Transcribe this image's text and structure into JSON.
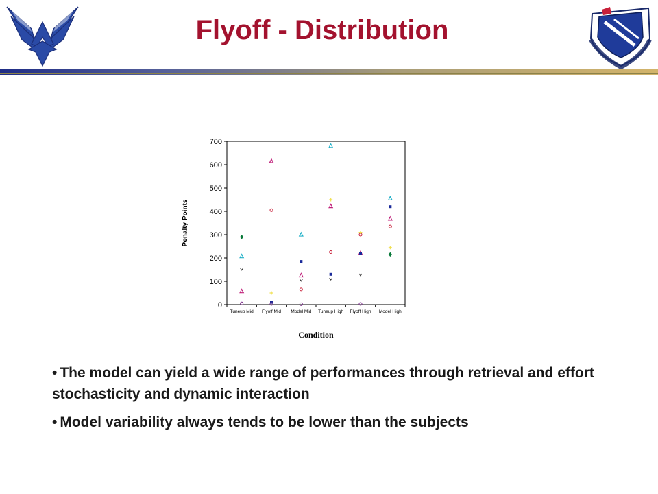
{
  "slide": {
    "title": "Flyoff - Distribution",
    "bullets": [
      "The model can yield a wide range of performances through retrieval and effort stochasticity and dynamic interaction",
      "Model variability always tends to be lower than the subjects"
    ],
    "left_logo_icon": "air-force-wings-icon",
    "right_logo_icon": "afosr-shield-icon",
    "colors": {
      "title": "#a3122e",
      "bar_left": "#1f2d86",
      "bar_right": "#d3b46a"
    }
  },
  "chart_data": {
    "type": "scatter",
    "title": "",
    "xlabel": "Condition",
    "ylabel": "Penalty Points",
    "categories": [
      "Tuneup Mid",
      "Flyoff Mid",
      "Model Mid",
      "Tuneup High",
      "Flyoff High",
      "Model High"
    ],
    "ylim": [
      0,
      700
    ],
    "yticks": [
      0,
      100,
      200,
      300,
      400,
      500,
      600,
      700
    ],
    "grid": false,
    "legend": "none",
    "series": [
      {
        "color": "#0a7a3a",
        "marker": "diamond",
        "points": [
          [
            0,
            290
          ],
          [
            5,
            215
          ]
        ]
      },
      {
        "color": "#20b0c8",
        "marker": "triangle",
        "points": [
          [
            0,
            207
          ],
          [
            2,
            300
          ],
          [
            3,
            680
          ],
          [
            5,
            455
          ]
        ]
      },
      {
        "color": "#c0207a",
        "marker": "triangle",
        "points": [
          [
            0,
            57
          ],
          [
            1,
            615
          ],
          [
            2,
            125
          ],
          [
            3,
            422
          ],
          [
            4,
            220
          ],
          [
            5,
            368
          ]
        ]
      },
      {
        "color": "#c8203a",
        "marker": "circle",
        "points": [
          [
            1,
            405
          ],
          [
            2,
            65
          ],
          [
            3,
            225
          ],
          [
            4,
            300
          ],
          [
            5,
            335
          ]
        ]
      },
      {
        "color": "#1a2a9a",
        "marker": "square",
        "points": [
          [
            1,
            10
          ],
          [
            2,
            185
          ],
          [
            3,
            130
          ],
          [
            4,
            220
          ],
          [
            5,
            420
          ]
        ]
      },
      {
        "color": "#f0e050",
        "marker": "star",
        "points": [
          [
            1,
            50
          ],
          [
            3,
            450
          ],
          [
            4,
            310
          ],
          [
            5,
            245
          ]
        ]
      },
      {
        "color": "#303030",
        "marker": "x",
        "points": [
          [
            0,
            152
          ],
          [
            2,
            105
          ],
          [
            3,
            110
          ],
          [
            4,
            128
          ]
        ]
      },
      {
        "color": "#7a2a8a",
        "marker": "circle",
        "points": [
          [
            0,
            5
          ],
          [
            1,
            3
          ],
          [
            2,
            2
          ],
          [
            4,
            3
          ]
        ]
      }
    ]
  }
}
